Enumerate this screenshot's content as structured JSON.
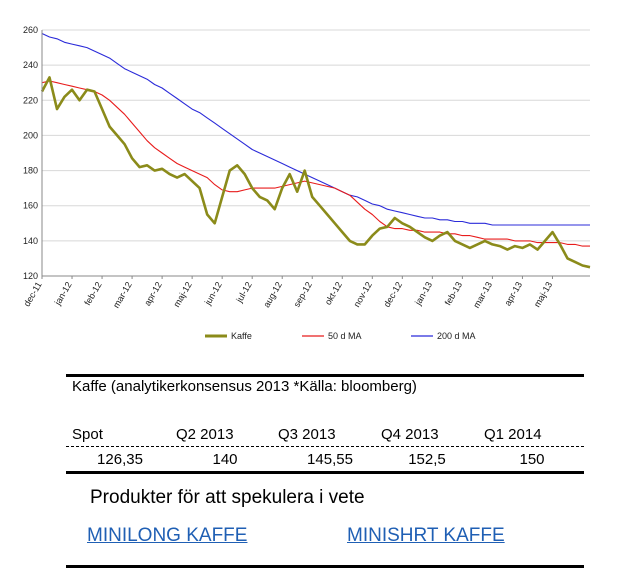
{
  "chart_data": {
    "type": "line",
    "title": "",
    "xlabel": "",
    "ylabel": "",
    "ylim": [
      120,
      260
    ],
    "yticks": [
      120,
      140,
      160,
      180,
      200,
      220,
      240,
      260
    ],
    "xticks": [
      "dec-11",
      "jan-12",
      "feb-12",
      "mar-12",
      "apr-12",
      "maj-12",
      "jun-12",
      "jul-12",
      "aug-12",
      "sep-12",
      "okt-12",
      "nov-12",
      "dec-12",
      "jan-13",
      "feb-13",
      "mar-13",
      "apr-13",
      "maj-13"
    ],
    "grid": "horizontal",
    "legend_position": "bottom",
    "x": [
      0,
      0.25,
      0.5,
      0.75,
      1,
      1.25,
      1.5,
      1.75,
      2,
      2.25,
      2.5,
      2.75,
      3,
      3.25,
      3.5,
      3.75,
      4,
      4.25,
      4.5,
      4.75,
      5,
      5.25,
      5.5,
      5.75,
      6,
      6.25,
      6.5,
      6.75,
      7,
      7.25,
      7.5,
      7.75,
      8,
      8.25,
      8.5,
      8.75,
      9,
      9.25,
      9.5,
      9.75,
      10,
      10.25,
      10.5,
      10.75,
      11,
      11.25,
      11.5,
      11.75,
      12,
      12.25,
      12.5,
      12.75,
      13,
      13.25,
      13.5,
      13.75,
      14,
      14.25,
      14.5,
      14.75,
      15,
      15.25,
      15.5,
      15.75,
      16,
      16.25,
      16.5,
      16.75,
      17,
      17.25,
      17.5,
      17.75,
      18,
      18.25
    ],
    "series": [
      {
        "name": "Kaffe",
        "color": "#8b8b1a",
        "values": [
          225,
          233,
          215,
          222,
          226,
          220,
          226,
          225,
          215,
          205,
          200,
          195,
          187,
          182,
          183,
          180,
          181,
          178,
          176,
          178,
          174,
          170,
          155,
          150,
          165,
          180,
          183,
          178,
          170,
          165,
          163,
          158,
          170,
          178,
          168,
          180,
          165,
          160,
          155,
          150,
          145,
          140,
          138,
          138,
          143,
          147,
          148,
          153,
          150,
          148,
          145,
          142,
          140,
          143,
          145,
          140,
          138,
          136,
          138,
          140,
          138,
          137,
          135,
          137,
          136,
          138,
          135,
          140,
          145,
          138,
          130,
          128,
          126,
          125
        ]
      },
      {
        "name": "50 d MA",
        "color": "#e81c1c",
        "values": [
          230,
          231,
          230,
          229,
          228,
          227,
          226,
          225,
          223,
          220,
          216,
          212,
          207,
          202,
          197,
          193,
          190,
          187,
          184,
          182,
          180,
          178,
          176,
          172,
          169,
          168,
          168,
          169,
          170,
          170,
          170,
          170,
          171,
          172,
          173,
          174,
          173,
          172,
          171,
          170,
          168,
          166,
          162,
          158,
          155,
          151,
          148,
          147,
          147,
          146,
          146,
          145,
          145,
          145,
          144,
          144,
          143,
          143,
          142,
          141,
          141,
          141,
          141,
          140,
          140,
          140,
          139,
          139,
          139,
          139,
          138,
          138,
          137,
          137
        ]
      },
      {
        "name": "200 d MA",
        "color": "#2b2bd9",
        "values": [
          258,
          256,
          255,
          253,
          252,
          251,
          250,
          248,
          246,
          244,
          241,
          238,
          236,
          234,
          232,
          229,
          227,
          224,
          221,
          218,
          215,
          213,
          210,
          207,
          204,
          201,
          198,
          195,
          192,
          190,
          188,
          186,
          184,
          182,
          180,
          178,
          176,
          174,
          172,
          170,
          168,
          166,
          165,
          163,
          161,
          160,
          158,
          157,
          156,
          155,
          154,
          153,
          153,
          152,
          152,
          151,
          151,
          150,
          150,
          150,
          149,
          149,
          149,
          149,
          149,
          149,
          149,
          149,
          149,
          149,
          149,
          149,
          149,
          149
        ]
      }
    ]
  },
  "table": {
    "caption": "Kaffe (analytikerkonsensus 2013 *Källa: bloomberg)",
    "headers": [
      "Spot",
      "Q2 2013",
      "Q3 2013",
      "Q4 2013",
      "Q1 2014"
    ],
    "values": [
      "126,35",
      "140",
      "145,55",
      "152,5",
      "150"
    ]
  },
  "products": {
    "title": "Produkter för att spekulera i vete",
    "links": [
      "MINILONG KAFFE",
      "MINISHRT KAFFE"
    ]
  }
}
